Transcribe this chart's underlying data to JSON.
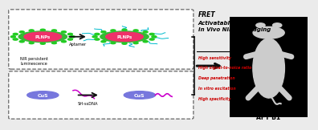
{
  "bg_color": "#ebebeb",
  "fret_text": "FRET",
  "activatable_text": "Activatable\nIn Vivo NIR Bioimaging",
  "bullet_texts": [
    "High sensitivity",
    "High signal-to-noice ratio",
    "Deep penetration",
    "In vitro excitation",
    "High specificity"
  ],
  "aft_label": "AFT B1",
  "aptamer_label": "Aptamer",
  "nir_label": "NIR persistent\nluminescence",
  "sh_label": "SH-ssDNA",
  "red_color": "#cc0000",
  "pink_core": "#f0306a",
  "green_ring": "#33bb33",
  "magenta_dna": "#cc00cc",
  "cyan_aptamer": "#00bbcc",
  "purple_cus": "#7777dd",
  "outer_green_dot": "#22cc22",
  "arrow_color": "#111111"
}
